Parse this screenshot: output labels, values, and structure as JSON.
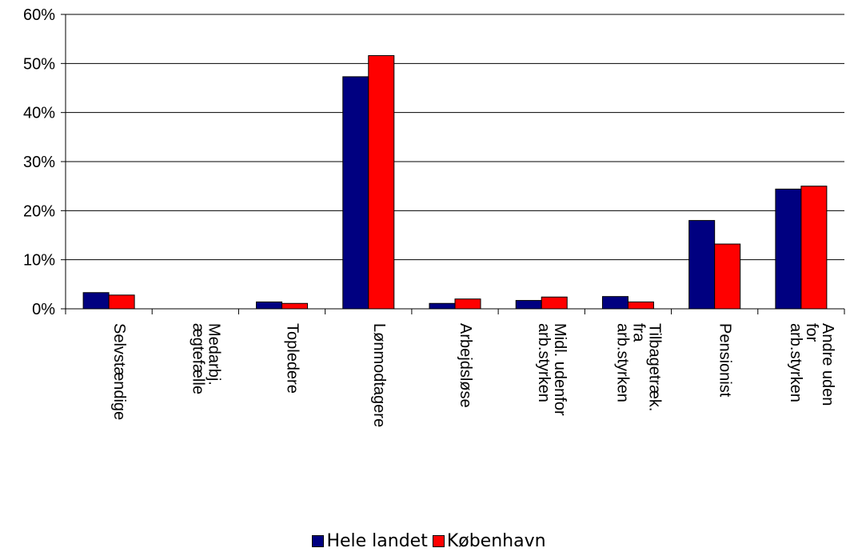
{
  "chart_data": {
    "type": "bar",
    "categories": [
      [
        "Selvstændige"
      ],
      [
        "Medarbj.",
        "ægtefælle"
      ],
      [
        "Topledere"
      ],
      [
        "Lønmodtagere"
      ],
      [
        "Arbejdsløse"
      ],
      [
        "Midl. udenfor",
        "arb.styrken"
      ],
      [
        "Tilbagetræk.",
        "fra",
        "arb.styrken"
      ],
      [
        "Pensionist"
      ],
      [
        "Andre uden",
        "for",
        "arb.styrken"
      ]
    ],
    "series": [
      {
        "name": "Hele landet",
        "color": "#000080",
        "values": [
          3.3,
          0,
          1.4,
          47.3,
          1.1,
          1.7,
          2.5,
          18.0,
          24.4
        ]
      },
      {
        "name": "København",
        "color": "#ff0000",
        "values": [
          2.8,
          0,
          1.1,
          51.6,
          2.0,
          2.4,
          1.4,
          13.2,
          25.0
        ]
      }
    ],
    "yticks": [
      "0%",
      "10%",
      "20%",
      "30%",
      "40%",
      "50%",
      "60%"
    ],
    "ylim": [
      0,
      60
    ],
    "grid": true,
    "legend": "bottom-center"
  }
}
